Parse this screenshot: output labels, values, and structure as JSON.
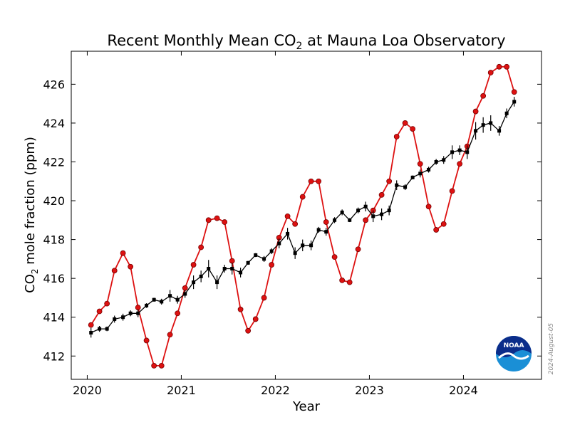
{
  "chart_data": {
    "type": "line",
    "title_prefix": "Recent Monthly Mean CO",
    "title_sub": "2",
    "title_suffix": " at Mauna Loa Observatory",
    "xlabel": "Year",
    "ylabel_prefix": "CO",
    "ylabel_sub": "2",
    "ylabel_suffix": " mole fraction (ppm)",
    "xlim": [
      2019.83,
      2024.83
    ],
    "ylim": [
      410.8,
      427.7
    ],
    "x_ticks": [
      2020,
      2021,
      2022,
      2023,
      2024
    ],
    "x_tick_labels": [
      "2020",
      "2021",
      "2022",
      "2023",
      "2024"
    ],
    "y_ticks": [
      412,
      414,
      416,
      418,
      420,
      422,
      424,
      426
    ],
    "y_tick_labels": [
      "412",
      "414",
      "416",
      "418",
      "420",
      "422",
      "424",
      "426"
    ],
    "grid": false,
    "date_stamp": "2024-August-05",
    "logo_label": "NOAA",
    "series": [
      {
        "color": "#dd1111",
        "marker": "circle",
        "x": [
          2020.04,
          2020.13,
          2020.21,
          2020.29,
          2020.38,
          2020.46,
          2020.54,
          2020.63,
          2020.71,
          2020.79,
          2020.88,
          2020.96,
          2021.04,
          2021.13,
          2021.21,
          2021.29,
          2021.38,
          2021.46,
          2021.54,
          2021.63,
          2021.71,
          2021.79,
          2021.88,
          2021.96,
          2022.04,
          2022.13,
          2022.21,
          2022.29,
          2022.38,
          2022.46,
          2022.54,
          2022.63,
          2022.71,
          2022.79,
          2022.88,
          2022.96,
          2023.04,
          2023.13,
          2023.21,
          2023.29,
          2023.38,
          2023.46,
          2023.54,
          2023.63,
          2023.71,
          2023.79,
          2023.88,
          2023.96,
          2024.04,
          2024.13,
          2024.21,
          2024.29,
          2024.38,
          2024.46,
          2024.54
        ],
        "values": [
          413.6,
          414.3,
          414.7,
          416.4,
          417.3,
          416.6,
          414.5,
          412.8,
          411.5,
          411.5,
          413.1,
          414.2,
          415.5,
          416.7,
          417.6,
          419.0,
          419.1,
          418.9,
          416.9,
          414.4,
          413.3,
          413.9,
          415.0,
          416.7,
          418.1,
          419.2,
          418.8,
          420.2,
          421.0,
          421.0,
          418.9,
          417.1,
          415.9,
          415.8,
          417.5,
          419.0,
          419.5,
          420.3,
          421.0,
          423.3,
          424.0,
          423.7,
          421.9,
          419.7,
          418.5,
          418.8,
          420.5,
          421.9,
          422.8,
          424.6,
          425.4,
          426.6,
          426.9,
          426.9,
          425.6
        ]
      },
      {
        "color": "#000000",
        "marker": "square",
        "x": [
          2020.04,
          2020.13,
          2020.21,
          2020.29,
          2020.38,
          2020.46,
          2020.54,
          2020.63,
          2020.71,
          2020.79,
          2020.88,
          2020.96,
          2021.04,
          2021.13,
          2021.21,
          2021.29,
          2021.38,
          2021.46,
          2021.54,
          2021.63,
          2021.71,
          2021.79,
          2021.88,
          2021.96,
          2022.04,
          2022.13,
          2022.21,
          2022.29,
          2022.38,
          2022.46,
          2022.54,
          2022.63,
          2022.71,
          2022.79,
          2022.88,
          2022.96,
          2023.04,
          2023.13,
          2023.21,
          2023.29,
          2023.38,
          2023.46,
          2023.54,
          2023.63,
          2023.71,
          2023.79,
          2023.88,
          2023.96,
          2024.04,
          2024.13,
          2024.21,
          2024.29,
          2024.38,
          2024.46,
          2024.54
        ],
        "values": [
          413.2,
          413.4,
          413.4,
          413.9,
          414.0,
          414.2,
          414.2,
          414.6,
          414.9,
          414.8,
          415.1,
          414.9,
          415.2,
          415.8,
          416.1,
          416.5,
          415.8,
          416.5,
          416.5,
          416.3,
          416.8,
          417.2,
          417.0,
          417.4,
          417.8,
          418.3,
          417.3,
          417.7,
          417.7,
          418.5,
          418.4,
          419.0,
          419.4,
          419.0,
          419.5,
          419.7,
          419.2,
          419.3,
          419.5,
          420.8,
          420.7,
          421.2,
          421.4,
          421.6,
          422.0,
          422.1,
          422.5,
          422.6,
          422.5,
          423.6,
          423.9,
          424.0,
          423.6,
          424.5,
          425.1
        ],
        "errors": [
          0.25,
          0.15,
          0.12,
          0.18,
          0.18,
          0.15,
          0.2,
          0.12,
          0.1,
          0.15,
          0.3,
          0.2,
          0.2,
          0.35,
          0.3,
          0.45,
          0.35,
          0.2,
          0.3,
          0.25,
          0.1,
          0.1,
          0.15,
          0.15,
          0.25,
          0.3,
          0.3,
          0.3,
          0.25,
          0.15,
          0.2,
          0.15,
          0.15,
          0.1,
          0.15,
          0.25,
          0.3,
          0.3,
          0.25,
          0.25,
          0.15,
          0.1,
          0.2,
          0.15,
          0.15,
          0.2,
          0.35,
          0.25,
          0.35,
          0.45,
          0.4,
          0.4,
          0.25,
          0.25,
          0.25
        ]
      }
    ]
  }
}
